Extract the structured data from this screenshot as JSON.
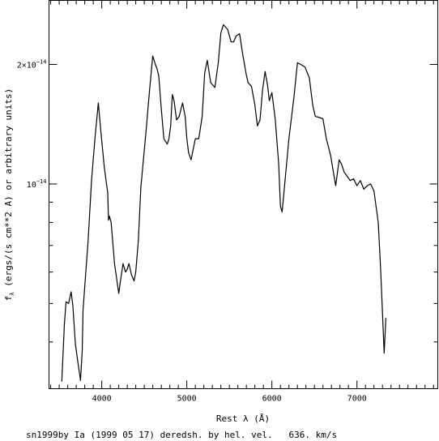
{
  "chart_data": {
    "type": "line",
    "xlabel": "Rest λ (Å)",
    "ylabel": "fλ (ergs/(s cm**2 A) or arbitrary units)",
    "ylabel_sub": "λ",
    "ylabel_main": "(ergs/(s cm**2 A) or arbitrary units)",
    "caption": "sn1999by Ia (1999 05 17) deredsh. by hel. vel.   636. km/s",
    "xlim": [
      3380,
      7950
    ],
    "ylim": [
      3.05e-15,
      2.9e-14
    ],
    "yscale": "log",
    "x_ticks": [
      4000,
      5000,
      6000,
      7000
    ],
    "x_minor_step": 100,
    "y_ticks": [
      {
        "value": 2e-14,
        "mantissa": "2×10",
        "exp": "−14"
      },
      {
        "value": 1e-14,
        "mantissa": "10",
        "exp": "−14"
      }
    ],
    "y_minor": [
      4e-15,
      5e-15,
      6e-15,
      7e-15,
      8e-15,
      9e-15
    ],
    "grid": false,
    "series": [
      {
        "x": [
          3530,
          3560,
          3580,
          3610,
          3640,
          3660,
          3690,
          3720,
          3750,
          3770,
          3780,
          3800,
          3840,
          3880,
          3920,
          3960,
          3990,
          4030,
          4070,
          4080,
          4090,
          4110,
          4150,
          4200,
          4220,
          4250,
          4280,
          4300,
          4320,
          4350,
          4380,
          4400,
          4430,
          4460,
          4520,
          4560,
          4600,
          4630,
          4650,
          4670,
          4700,
          4730,
          4770,
          4790,
          4810,
          4830,
          4850,
          4880,
          4910,
          4950,
          4980,
          5000,
          5020,
          5050,
          5080,
          5100,
          5140,
          5180,
          5210,
          5240,
          5280,
          5330,
          5370,
          5400,
          5430,
          5480,
          5520,
          5550,
          5580,
          5620,
          5660,
          5700,
          5720,
          5760,
          5800,
          5830,
          5860,
          5890,
          5920,
          5950,
          5970,
          6000,
          6040,
          6080,
          6100,
          6120,
          6160,
          6200,
          6260,
          6300,
          6340,
          6390,
          6440,
          6480,
          6510,
          6560,
          6600,
          6640,
          6690,
          6720,
          6750,
          6790,
          6820,
          6850,
          6880,
          6920,
          6960,
          7000,
          7040,
          7080,
          7120,
          7160,
          7200,
          7250,
          7280,
          7320,
          7340
        ],
        "y": [
          3.18e-15,
          4.4e-15,
          5.05e-15,
          5e-15,
          5.35e-15,
          4.95e-15,
          3.95e-15,
          3.55e-15,
          3.2e-15,
          3.8e-15,
          4.8e-15,
          5.5e-15,
          7.2e-15,
          1.02e-14,
          1.3e-14,
          1.6e-14,
          1.35e-14,
          1.1e-14,
          9.5e-15,
          8.1e-15,
          8.3e-15,
          8e-15,
          6.3e-15,
          5.3e-15,
          5.7e-15,
          6.3e-15,
          6e-15,
          6.1e-15,
          6.3e-15,
          5.9e-15,
          5.7e-15,
          6e-15,
          7.2e-15,
          9.8e-15,
          1.35e-14,
          1.7e-14,
          2.1e-14,
          2e-14,
          1.95e-14,
          1.87e-14,
          1.55e-14,
          1.3e-14,
          1.26e-14,
          1.3e-14,
          1.4e-14,
          1.68e-14,
          1.62e-14,
          1.45e-14,
          1.48e-14,
          1.6e-14,
          1.48e-14,
          1.3e-14,
          1.2e-14,
          1.15e-14,
          1.24e-14,
          1.3e-14,
          1.3e-14,
          1.48e-14,
          1.9e-14,
          2.05e-14,
          1.8e-14,
          1.75e-14,
          2.02e-14,
          2.4e-14,
          2.52e-14,
          2.45e-14,
          2.28e-14,
          2.28e-14,
          2.36e-14,
          2.39e-14,
          2.1e-14,
          1.88e-14,
          1.8e-14,
          1.76e-14,
          1.58e-14,
          1.4e-14,
          1.45e-14,
          1.72e-14,
          1.92e-14,
          1.77e-14,
          1.62e-14,
          1.7e-14,
          1.45e-14,
          1.12e-14,
          8.8e-15,
          8.5e-15,
          1.05e-14,
          1.3e-14,
          1.66e-14,
          2.02e-14,
          2e-14,
          1.97e-14,
          1.85e-14,
          1.58e-14,
          1.48e-14,
          1.47e-14,
          1.46e-14,
          1.3e-14,
          1.18e-14,
          1.08e-14,
          9.9e-15,
          1.15e-14,
          1.12e-14,
          1.07e-14,
          1.05e-14,
          1.02e-14,
          1.03e-14,
          9.9e-15,
          1.02e-14,
          9.7e-15,
          9.9e-15,
          1e-14,
          9.6e-15,
          8e-15,
          6e-15,
          3.75e-15,
          4.6e-15
        ]
      }
    ]
  }
}
